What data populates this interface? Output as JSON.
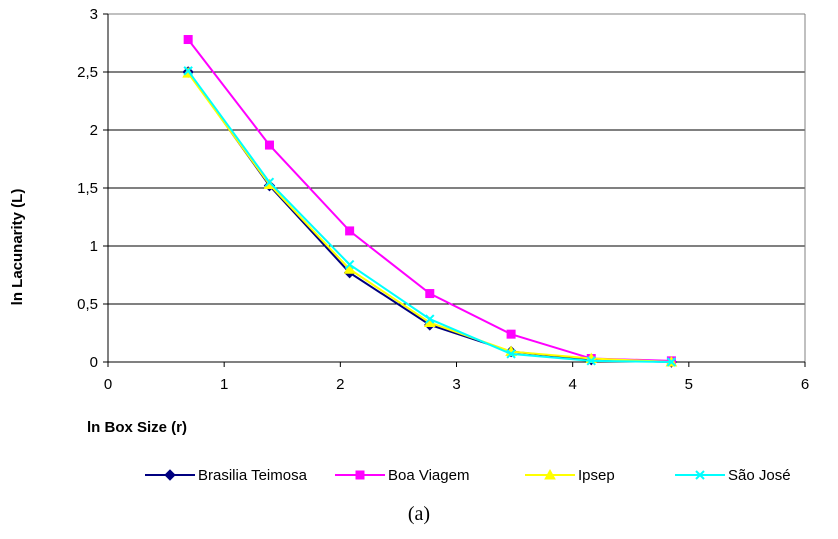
{
  "chart_data": {
    "type": "line",
    "title": "",
    "xlabel": "ln Box Size (r)",
    "ylabel": "ln Lacunarity (L)",
    "xlim": [
      0,
      6
    ],
    "ylim": [
      0,
      3
    ],
    "x_ticks": [
      "0",
      "1",
      "2",
      "3",
      "4",
      "5",
      "6"
    ],
    "y_ticks": [
      "0",
      "0,5",
      "1",
      "1,5",
      "2",
      "2,5",
      "3"
    ],
    "grid": "horizontal",
    "legend_position": "bottom",
    "x": [
      0.69,
      1.39,
      2.08,
      2.77,
      3.47,
      4.16,
      4.85
    ],
    "series": [
      {
        "name": "Brasilia Teimosa",
        "color": "#000080",
        "marker": "diamond",
        "values": [
          2.5,
          1.52,
          0.77,
          0.32,
          0.09,
          0.02,
          0.0
        ]
      },
      {
        "name": "Boa Viagem",
        "color": "#ff00ff",
        "marker": "square",
        "values": [
          2.78,
          1.87,
          1.13,
          0.59,
          0.24,
          0.03,
          0.01
        ]
      },
      {
        "name": "Ipsep",
        "color": "#ffff00",
        "marker": "triangle",
        "values": [
          2.49,
          1.53,
          0.8,
          0.34,
          0.09,
          0.03,
          0.0
        ]
      },
      {
        "name": "São José",
        "color": "#00ffff",
        "marker": "x",
        "values": [
          2.51,
          1.55,
          0.84,
          0.37,
          0.07,
          0.01,
          0.0
        ]
      }
    ]
  },
  "caption": "(a)"
}
